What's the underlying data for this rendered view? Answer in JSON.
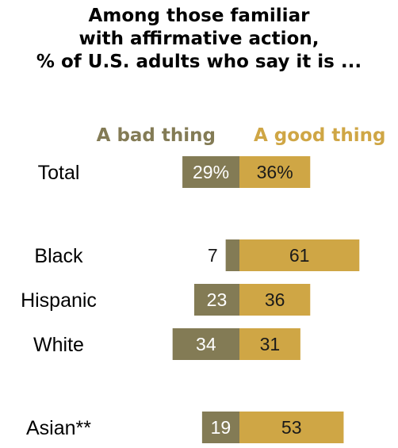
{
  "title_lines": [
    "Among those familiar",
    "with affirmative action,",
    "% of U.S. adults who say it is ..."
  ],
  "colors": {
    "bad": "#837b55",
    "good": "#cfa645",
    "bad_text": "#837b55",
    "good_text": "#cfa645"
  },
  "chart_data": {
    "type": "bar",
    "orientation": "horizontal-diverging",
    "title": "Among those familiar with affirmative action, % of U.S. adults who say it is ...",
    "categories": [
      "Total",
      "Black",
      "Hispanic",
      "White",
      "Asian**"
    ],
    "series": [
      {
        "name": "A bad thing",
        "values": [
          29,
          7,
          23,
          34,
          19
        ],
        "labels": [
          "29%",
          "7",
          "23",
          "34",
          "19"
        ]
      },
      {
        "name": "A good thing",
        "values": [
          36,
          61,
          36,
          31,
          53
        ],
        "labels": [
          "36%",
          "61",
          "36",
          "31",
          "53"
        ]
      }
    ],
    "legend": "top"
  }
}
